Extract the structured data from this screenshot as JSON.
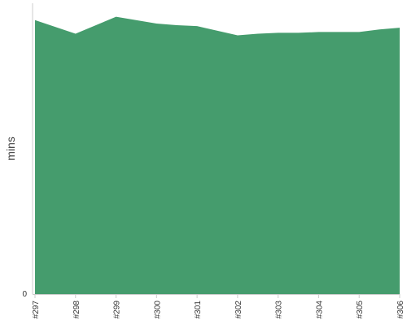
{
  "chart_data": {
    "type": "area",
    "title": "",
    "xlabel": "",
    "ylabel": "mins",
    "y_tick_labels": [
      "0"
    ],
    "ylim": [
      0,
      17.2
    ],
    "grid": false,
    "legend": false,
    "fill_color": "#459c6d",
    "axis_color": "#cccccc",
    "x_tick_labels": [
      "#297",
      "#298",
      "#299",
      "#300",
      "#301",
      "#302",
      "#303",
      "#304",
      "#305",
      "#306"
    ],
    "points": [
      {
        "x": 0,
        "y": 16.2
      },
      {
        "x": 1,
        "y": 15.4
      },
      {
        "x": 2,
        "y": 16.4
      },
      {
        "x": 3,
        "y": 16.0
      },
      {
        "x": 3.5,
        "y": 15.9
      },
      {
        "x": 4,
        "y": 15.85
      },
      {
        "x": 5,
        "y": 15.3
      },
      {
        "x": 5.5,
        "y": 15.4
      },
      {
        "x": 6,
        "y": 15.45
      },
      {
        "x": 6.5,
        "y": 15.45
      },
      {
        "x": 7,
        "y": 15.5
      },
      {
        "x": 8,
        "y": 15.5
      },
      {
        "x": 8.5,
        "y": 15.65
      },
      {
        "x": 9,
        "y": 15.75
      }
    ]
  }
}
